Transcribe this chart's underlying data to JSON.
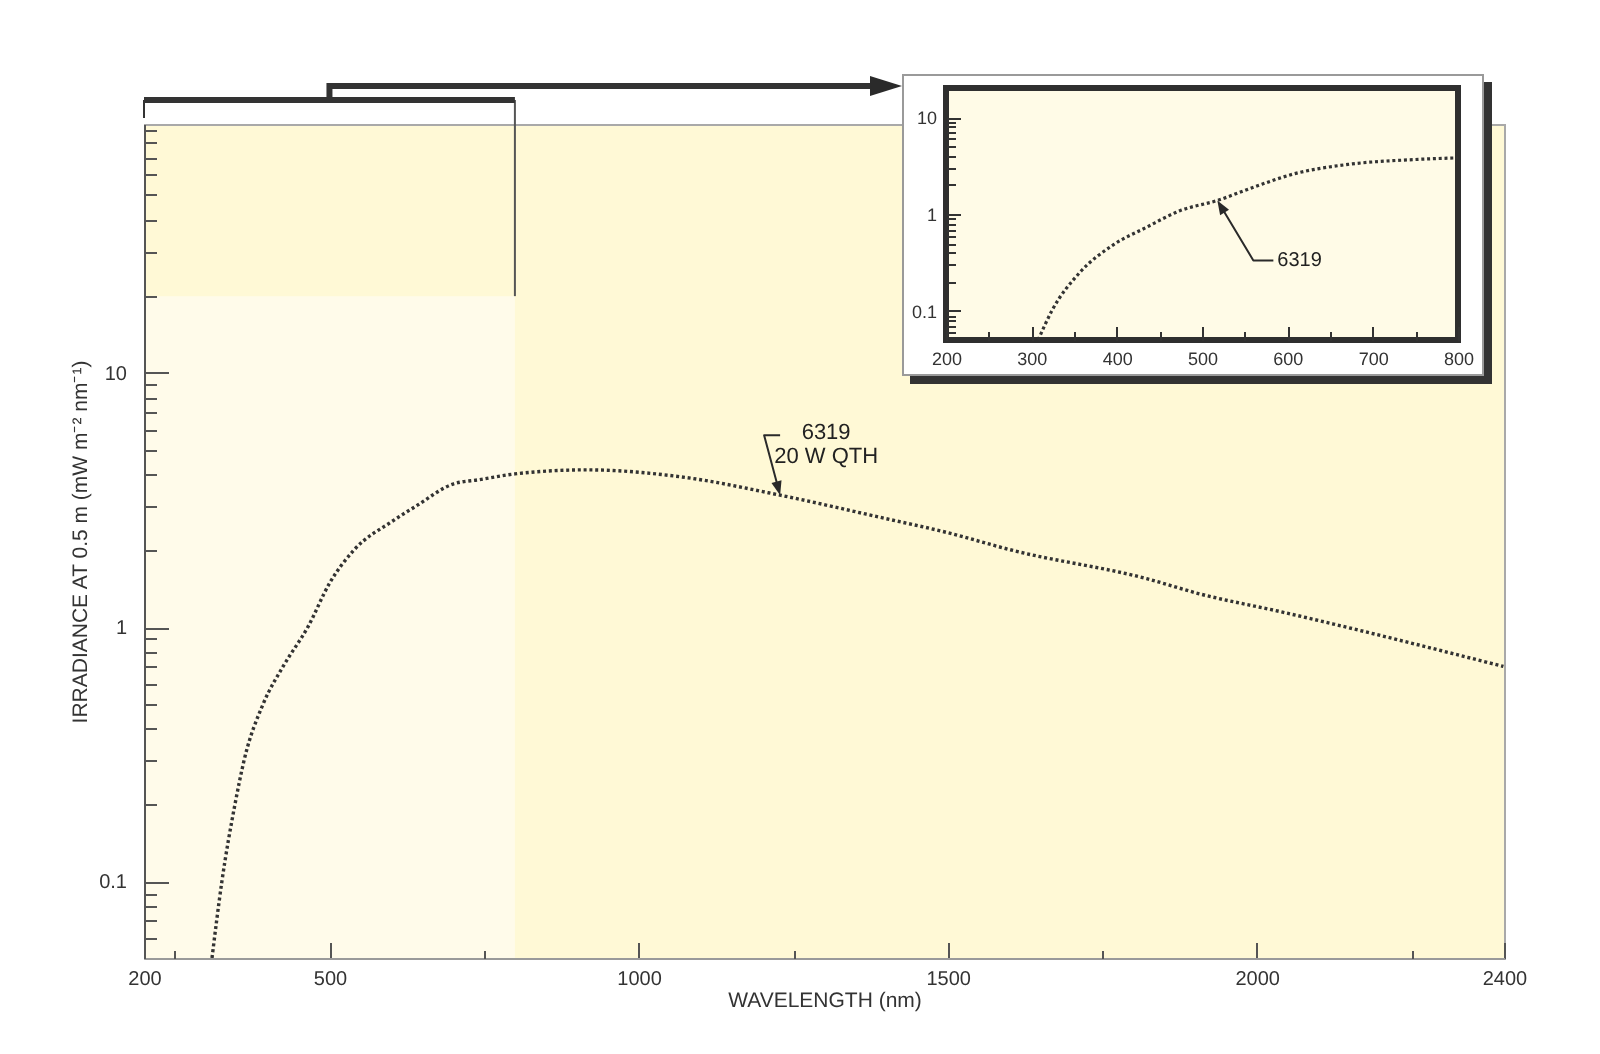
{
  "chart_data": [
    {
      "type": "line",
      "xlabel": "WAVELENGTH (nm)",
      "ylabel": "IRRADIANCE AT 0.5 m (mW m⁻² nm⁻¹)",
      "log": "y",
      "line_style": "dotted",
      "series": [
        {
          "color": "#333333",
          "x": [
            310,
            326,
            347,
            362,
            393,
            425,
            465,
            501,
            539,
            601,
            641,
            700,
            743,
            800,
            916,
            1067,
            1229,
            1391,
            1500,
            1606,
            1822,
            1908,
            2038,
            2399
          ],
          "values": [
            0.05,
            0.1,
            0.2,
            0.3,
            0.5,
            0.7,
            1,
            1.5,
            2,
            2.6,
            3,
            3.65,
            3.8,
            4,
            4.15,
            3.9,
            3.3,
            2.7,
            2.35,
            2,
            1.55,
            1.35,
            1.15,
            0.7
          ]
        }
      ],
      "xlim": [
        200,
        2400
      ],
      "xticks": [
        200,
        {
          "value": 250,
          "label": null
        },
        500,
        {
          "value": 750,
          "label": null
        },
        1000,
        {
          "value": 1250,
          "label": null
        },
        1500,
        {
          "value": 1750,
          "label": null
        },
        2000,
        {
          "value": 2250,
          "label": null
        },
        2400
      ],
      "ylim": [
        0.05,
        95
      ],
      "yticks": [
        {
          "value": 0.06,
          "label": null
        },
        {
          "value": 0.07,
          "label": null
        },
        {
          "value": 0.08,
          "label": null
        },
        {
          "value": 0.09,
          "label": null
        },
        0.1,
        {
          "value": 0.2,
          "label": null
        },
        {
          "value": 0.3,
          "label": null
        },
        {
          "value": 0.4,
          "label": null
        },
        {
          "value": 0.5,
          "label": null
        },
        {
          "value": 0.6,
          "label": null
        },
        {
          "value": 0.7,
          "label": null
        },
        {
          "value": 0.8,
          "label": null
        },
        {
          "value": 0.9,
          "label": null
        },
        1,
        {
          "value": 2,
          "label": null
        },
        {
          "value": 3,
          "label": null
        },
        {
          "value": 4,
          "label": null
        },
        {
          "value": 5,
          "label": null
        },
        {
          "value": 6,
          "label": null
        },
        {
          "value": 7,
          "label": null
        },
        {
          "value": 8,
          "label": null
        },
        {
          "value": 9,
          "label": null
        },
        10,
        {
          "value": 20,
          "label": null
        },
        {
          "value": 30,
          "label": null
        },
        {
          "value": 40,
          "label": null
        },
        {
          "value": 50,
          "label": null
        },
        {
          "value": 60,
          "label": null
        },
        {
          "value": 70,
          "label": null
        },
        {
          "value": 80,
          "label": null
        },
        {
          "value": 90,
          "label": null
        }
      ],
      "bands": [
        {
          "axis": "x",
          "from": 200,
          "to": 800,
          "color": "#fffbea"
        }
      ],
      "annotations": [
        {
          "text": "6319\n20 W QTH",
          "x": 1229,
          "y": 3.3
        }
      ]
    },
    {
      "type": "line",
      "log": "y",
      "line_style": "dotted",
      "series": [
        {
          "color": "#333333",
          "x": [
            308,
            324,
            357,
            396,
            435,
            474,
            518,
            561,
            608,
            671,
            749,
            800
          ],
          "values": [
            0.05,
            0.1,
            0.25,
            0.48,
            0.73,
            1.08,
            1.38,
            1.9,
            2.6,
            3.25,
            3.65,
            3.8
          ]
        }
      ],
      "xlim": [
        200,
        800
      ],
      "xticks": [
        200,
        {
          "value": 250,
          "label": null
        },
        300,
        {
          "value": 350,
          "label": null
        },
        400,
        {
          "value": 450,
          "label": null
        },
        500,
        {
          "value": 550,
          "label": null
        },
        600,
        {
          "value": 650,
          "label": null
        },
        700,
        {
          "value": 750,
          "label": null
        },
        800
      ],
      "ylim": [
        0.05,
        20
      ],
      "yticks": [
        {
          "value": 0.06,
          "label": null
        },
        {
          "value": 0.07,
          "label": null
        },
        {
          "value": 0.08,
          "label": null
        },
        {
          "value": 0.09,
          "label": null
        },
        0.1,
        {
          "value": 0.2,
          "label": null
        },
        {
          "value": 0.3,
          "label": null
        },
        {
          "value": 0.4,
          "label": null
        },
        {
          "value": 0.5,
          "label": null
        },
        {
          "value": 0.6,
          "label": null
        },
        {
          "value": 0.7,
          "label": null
        },
        {
          "value": 0.8,
          "label": null
        },
        {
          "value": 0.9,
          "label": null
        },
        1,
        {
          "value": 2,
          "label": null
        },
        {
          "value": 3,
          "label": null
        },
        {
          "value": 4,
          "label": null
        },
        {
          "value": 5,
          "label": null
        },
        {
          "value": 6,
          "label": null
        },
        {
          "value": 7,
          "label": null
        },
        {
          "value": 8,
          "label": null
        },
        {
          "value": 9,
          "label": null
        },
        10
      ],
      "annotations": [
        {
          "text": "6319",
          "x": 518,
          "y": 1.38
        }
      ]
    }
  ]
}
